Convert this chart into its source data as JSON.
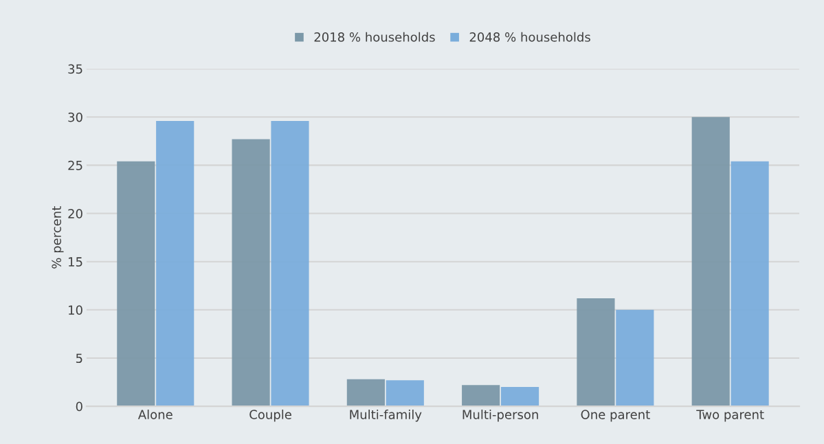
{
  "chart_data": {
    "type": "bar",
    "ylabel": "% percent",
    "categories": [
      "Alone",
      "Couple",
      "Multi-family",
      "Multi-person",
      "One parent",
      "Two parent"
    ],
    "series": [
      {
        "name": "2018 % households",
        "color": "#7b98a8",
        "values": [
          25.4,
          27.7,
          2.8,
          2.2,
          11.2,
          30.0
        ]
      },
      {
        "name": "2048 % households",
        "color": "#7aaddb",
        "values": [
          29.6,
          29.6,
          2.7,
          2.0,
          10.0,
          25.4
        ]
      }
    ],
    "ylim": [
      0,
      35
    ],
    "yticks": [
      0,
      5,
      10,
      15,
      20,
      25,
      30,
      35
    ],
    "grid": "y",
    "legend": "top"
  }
}
